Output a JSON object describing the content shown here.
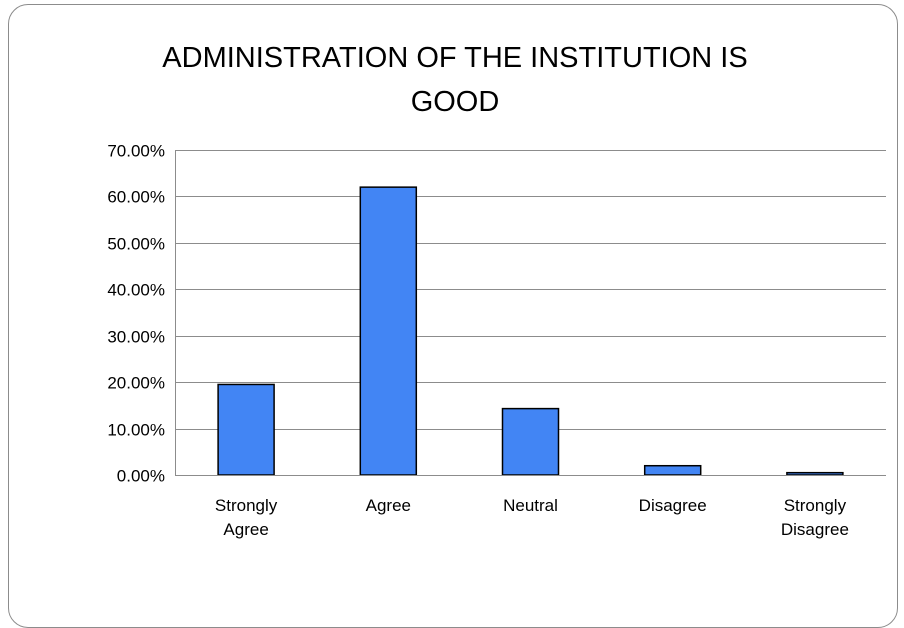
{
  "chart_data": {
    "type": "bar",
    "title": "ADMINISTRATION OF THE INSTITUTION IS GOOD",
    "categories": [
      [
        "Strongly",
        "Agree"
      ],
      [
        "Agree"
      ],
      [
        "Neutral"
      ],
      [
        "Disagree"
      ],
      [
        "Strongly",
        "Disagree"
      ]
    ],
    "values": [
      19.5,
      62.0,
      14.3,
      2.0,
      0.5
    ],
    "ylim": [
      0,
      70
    ],
    "yticks": [
      "0.00%",
      "10.00%",
      "20.00%",
      "30.00%",
      "40.00%",
      "50.00%",
      "60.00%",
      "70.00%"
    ],
    "xlabel": "",
    "ylabel": "",
    "grid": true,
    "legend": "none",
    "colors": {
      "bar_fill": "#4285F4",
      "bar_stroke": "#000000",
      "grid": "#8c8c8c",
      "axis": "#8c8c8c"
    }
  }
}
